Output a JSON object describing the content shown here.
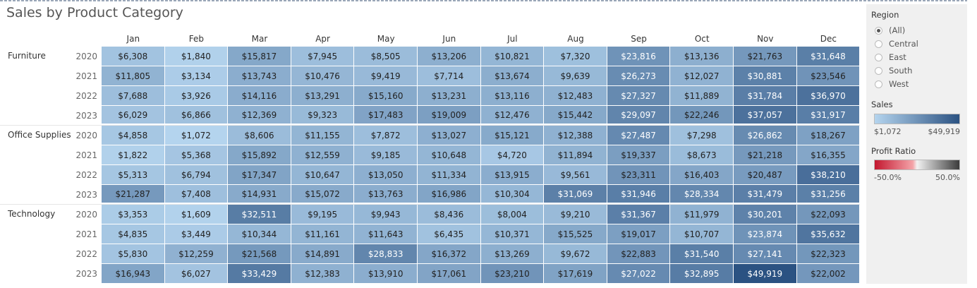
{
  "title": "Sales by Product Category",
  "months": [
    "Jan",
    "Feb",
    "Mar",
    "Apr",
    "May",
    "Jun",
    "Jul",
    "Aug",
    "Sep",
    "Oct",
    "Nov",
    "Dec"
  ],
  "categories": [
    {
      "name": "Furniture",
      "years": [
        {
          "year": "2020",
          "values": [
            "$6,308",
            "$1,840",
            "$15,817",
            "$7,945",
            "$8,505",
            "$13,206",
            "$10,821",
            "$7,320",
            "$23,816",
            "$13,136",
            "$21,763",
            "$31,648"
          ]
        },
        {
          "year": "2021",
          "values": [
            "$11,805",
            "$3,134",
            "$13,743",
            "$10,476",
            "$9,419",
            "$7,714",
            "$13,674",
            "$9,639",
            "$26,273",
            "$12,027",
            "$30,881",
            "$23,546"
          ]
        },
        {
          "year": "2022",
          "values": [
            "$7,688",
            "$3,926",
            "$14,116",
            "$13,291",
            "$15,160",
            "$13,231",
            "$13,116",
            "$12,483",
            "$27,327",
            "$11,889",
            "$31,784",
            "$36,970"
          ]
        },
        {
          "year": "2023",
          "values": [
            "$6,029",
            "$6,866",
            "$12,369",
            "$9,323",
            "$17,483",
            "$19,009",
            "$12,476",
            "$15,442",
            "$29,097",
            "$22,246",
            "$37,057",
            "$31,917"
          ]
        }
      ]
    },
    {
      "name": "Office Supplies",
      "years": [
        {
          "year": "2020",
          "values": [
            "$4,858",
            "$1,072",
            "$8,606",
            "$11,155",
            "$7,872",
            "$13,027",
            "$15,121",
            "$12,388",
            "$27,487",
            "$7,298",
            "$26,862",
            "$18,267"
          ]
        },
        {
          "year": "2021",
          "values": [
            "$1,822",
            "$5,368",
            "$15,892",
            "$12,559",
            "$9,185",
            "$10,648",
            "$4,720",
            "$11,894",
            "$19,337",
            "$8,673",
            "$21,218",
            "$16,355"
          ]
        },
        {
          "year": "2022",
          "values": [
            "$5,313",
            "$6,794",
            "$17,347",
            "$10,647",
            "$13,050",
            "$11,334",
            "$13,915",
            "$9,561",
            "$23,311",
            "$16,403",
            "$20,487",
            "$38,210"
          ]
        },
        {
          "year": "2023",
          "values": [
            "$21,287",
            "$7,408",
            "$14,931",
            "$15,072",
            "$13,763",
            "$16,986",
            "$10,304",
            "$31,069",
            "$31,946",
            "$28,334",
            "$31,479",
            "$31,256"
          ]
        }
      ]
    },
    {
      "name": "Technology",
      "years": [
        {
          "year": "2020",
          "values": [
            "$3,353",
            "$1,609",
            "$32,511",
            "$9,195",
            "$9,943",
            "$8,436",
            "$8,004",
            "$9,210",
            "$31,367",
            "$11,979",
            "$30,201",
            "$22,093"
          ]
        },
        {
          "year": "2021",
          "values": [
            "$4,835",
            "$3,449",
            "$10,344",
            "$11,161",
            "$11,643",
            "$6,435",
            "$10,371",
            "$15,525",
            "$19,017",
            "$10,707",
            "$23,874",
            "$35,632"
          ]
        },
        {
          "year": "2022",
          "values": [
            "$5,830",
            "$12,259",
            "$21,568",
            "$14,891",
            "$28,833",
            "$16,372",
            "$13,269",
            "$9,672",
            "$22,883",
            "$31,540",
            "$27,141",
            "$22,323"
          ]
        },
        {
          "year": "2023",
          "values": [
            "$16,943",
            "$6,027",
            "$33,429",
            "$12,383",
            "$13,910",
            "$17,061",
            "$23,210",
            "$17,619",
            "$27,022",
            "$32,895",
            "$49,919",
            "$22,002"
          ]
        }
      ]
    }
  ],
  "chart_data": {
    "type": "heatmap",
    "title": "Sales by Product Category",
    "x_categories": [
      "Jan",
      "Feb",
      "Mar",
      "Apr",
      "May",
      "Jun",
      "Jul",
      "Aug",
      "Sep",
      "Oct",
      "Nov",
      "Dec"
    ],
    "row_groups": [
      "Furniture",
      "Office Supplies",
      "Technology"
    ],
    "row_years": [
      "2020",
      "2021",
      "2022",
      "2023"
    ],
    "color_scale": {
      "min": 1072,
      "max": 49919,
      "min_color": "#b4d4ee",
      "max_color": "#2b5282"
    },
    "values": {
      "Furniture": [
        [
          6308,
          1840,
          15817,
          7945,
          8505,
          13206,
          10821,
          7320,
          23816,
          13136,
          21763,
          31648
        ],
        [
          11805,
          3134,
          13743,
          10476,
          9419,
          7714,
          13674,
          9639,
          26273,
          12027,
          30881,
          23546
        ],
        [
          7688,
          3926,
          14116,
          13291,
          15160,
          13231,
          13116,
          12483,
          27327,
          11889,
          31784,
          36970
        ],
        [
          6029,
          6866,
          12369,
          9323,
          17483,
          19009,
          12476,
          15442,
          29097,
          22246,
          37057,
          31917
        ]
      ],
      "Office Supplies": [
        [
          4858,
          1072,
          8606,
          11155,
          7872,
          13027,
          15121,
          12388,
          27487,
          7298,
          26862,
          18267
        ],
        [
          1822,
          5368,
          15892,
          12559,
          9185,
          10648,
          4720,
          11894,
          19337,
          8673,
          21218,
          16355
        ],
        [
          5313,
          6794,
          17347,
          10647,
          13050,
          11334,
          13915,
          9561,
          23311,
          16403,
          20487,
          38210
        ],
        [
          21287,
          7408,
          14931,
          15072,
          13763,
          16986,
          10304,
          31069,
          31946,
          28334,
          31479,
          31256
        ]
      ],
      "Technology": [
        [
          3353,
          1609,
          32511,
          9195,
          9943,
          8436,
          8004,
          9210,
          31367,
          11979,
          30201,
          22093
        ],
        [
          4835,
          3449,
          10344,
          11161,
          11643,
          6435,
          10371,
          15525,
          19017,
          10707,
          23874,
          35632
        ],
        [
          5830,
          12259,
          21568,
          14891,
          28833,
          16372,
          13269,
          9672,
          22883,
          31540,
          27141,
          22323
        ],
        [
          16943,
          6027,
          33429,
          12383,
          13910,
          17061,
          23210,
          17619,
          27022,
          32895,
          49919,
          22002
        ]
      ]
    }
  },
  "sidebar": {
    "region_title": "Region",
    "region_options": [
      {
        "label": "(All)",
        "selected": true
      },
      {
        "label": "Central",
        "selected": false
      },
      {
        "label": "East",
        "selected": false
      },
      {
        "label": "South",
        "selected": false
      },
      {
        "label": "West",
        "selected": false
      }
    ],
    "sales_title": "Sales",
    "sales_min": "$1,072",
    "sales_max": "$49,919",
    "profit_title": "Profit Ratio",
    "profit_min": "-50.0%",
    "profit_max": "50.0%"
  },
  "colors": {
    "sales_light": "#b4d4ee",
    "sales_dark": "#2b5282",
    "profit_neg": "#c3172f",
    "profit_mid": "#f2f2f2",
    "profit_pos": "#3b3b3b"
  }
}
